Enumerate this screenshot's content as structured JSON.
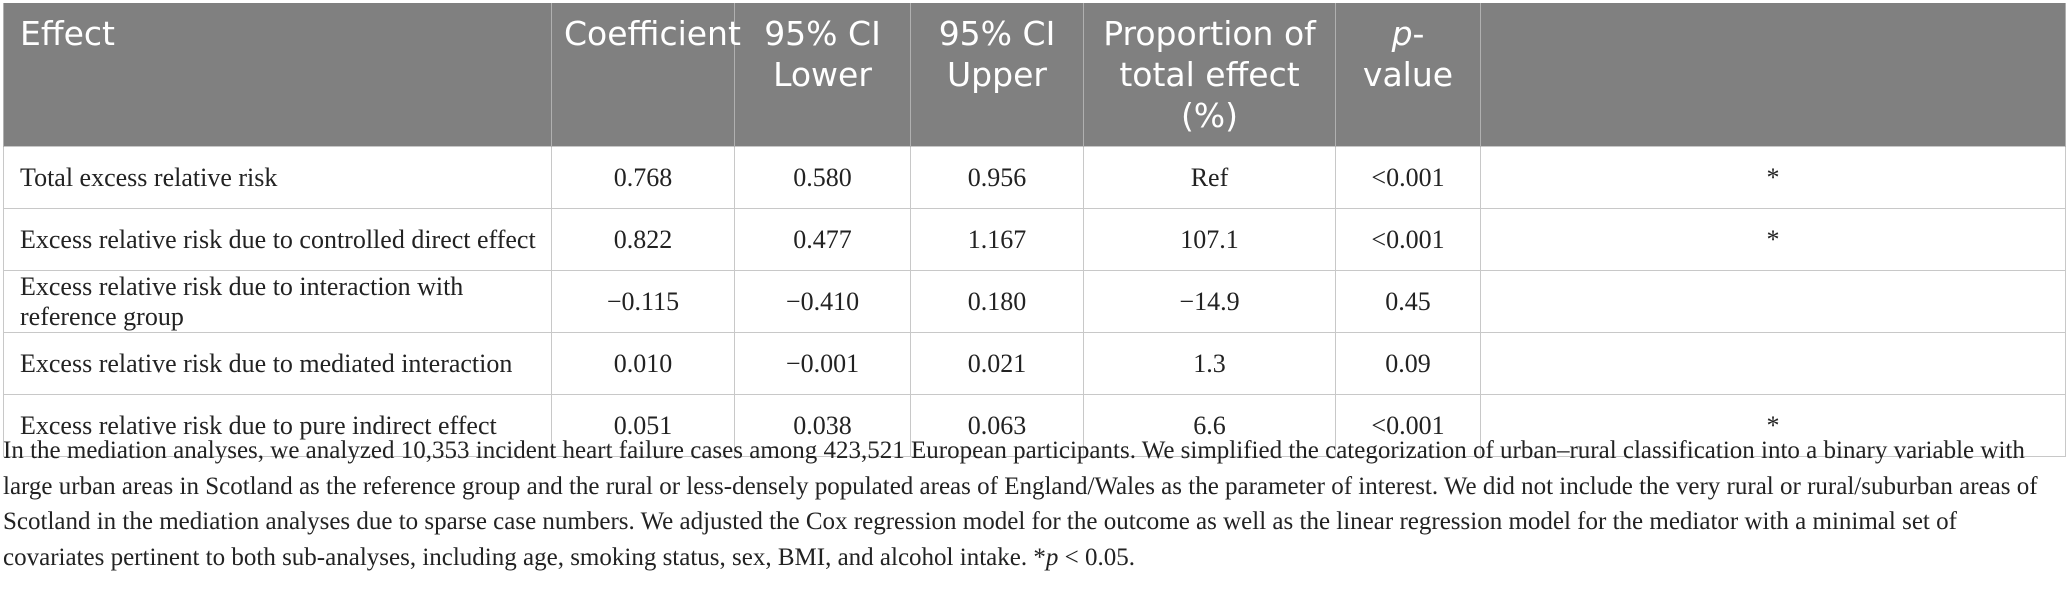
{
  "table": {
    "headers": {
      "effect": "Effect",
      "coefficient": "Coefficient",
      "ci_lower": [
        "95% CI",
        "Lower"
      ],
      "ci_upper": [
        "95% CI",
        "Upper"
      ],
      "proportion": [
        "Proportion of",
        "total effect (%)"
      ],
      "pvalue_italic": "p",
      "pvalue_rest": "-value",
      "sig": ""
    },
    "rows": [
      {
        "effect": "Total excess relative risk",
        "coefficient": "0.768",
        "ci_lower": "0.580",
        "ci_upper": "0.956",
        "proportion": "Ref",
        "pvalue": "<0.001",
        "sig": "*"
      },
      {
        "effect": "Excess relative risk due to controlled direct effect",
        "coefficient": "0.822",
        "ci_lower": "0.477",
        "ci_upper": "1.167",
        "proportion": "107.1",
        "pvalue": "<0.001",
        "sig": "*"
      },
      {
        "effect": "Excess relative risk due to interaction with reference group",
        "coefficient": "−0.115",
        "ci_lower": "−0.410",
        "ci_upper": "0.180",
        "proportion": "−14.9",
        "pvalue": "0.45",
        "sig": ""
      },
      {
        "effect": "Excess relative risk due to mediated interaction",
        "coefficient": "0.010",
        "ci_lower": "−0.001",
        "ci_upper": "0.021",
        "proportion": "1.3",
        "pvalue": "0.09",
        "sig": ""
      },
      {
        "effect": "Excess relative risk due to pure indirect effect",
        "coefficient": "0.051",
        "ci_lower": "0.038",
        "ci_upper": "0.063",
        "proportion": "6.6",
        "pvalue": "<0.001",
        "sig": "*"
      }
    ]
  },
  "footnote": {
    "text": "In the mediation analyses, we analyzed 10,353 incident heart failure cases among 423,521 European participants. We simplified the categorization of urban–rural classification into a binary variable with large urban areas in Scotland as the reference group and the rural or less-densely populated areas of England/Wales as the parameter of interest. We did not include the very rural or rural/suburban areas of Scotland in the mediation analyses due to sparse case numbers. We adjusted the Cox regression model for the outcome as well as the linear regression model for the mediator with a minimal set of covariates pertinent to both sub-analyses, including age, smoking status, sex, BMI, and alcohol intake. *",
    "sig_italic": "p",
    "sig_rest": " < 0.05."
  },
  "colors": {
    "header_bg": "#808080",
    "header_text": "#ffffff",
    "body_text": "#222222",
    "grid": "#c8c8c8"
  }
}
